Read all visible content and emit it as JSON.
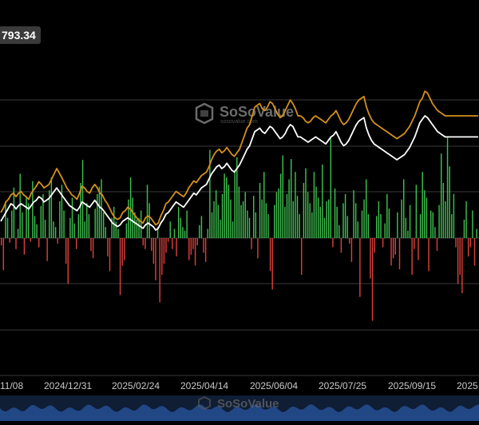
{
  "header": {
    "value_label": "793.34"
  },
  "watermark": {
    "brand": "SoSoValue",
    "sub": "sosovalue.com"
  },
  "chart_data": {
    "type": "bar",
    "title": "",
    "xlabel": "",
    "ylabel": "",
    "x_tick_labels": [
      "11/08",
      "2024/12/31",
      "2025/02/24",
      "2025/04/14",
      "2025/06/04",
      "2025/07/25",
      "2025/09/15",
      "2025"
    ],
    "flow_bar_values": [
      -8,
      -35,
      40,
      22,
      -5,
      30,
      55,
      -12,
      10,
      70,
      28,
      -18,
      45,
      38,
      -4,
      62,
      24,
      15,
      -10,
      35,
      48,
      20,
      -25,
      52,
      66,
      18,
      12,
      -6,
      40,
      58,
      30,
      -28,
      -50,
      22,
      44,
      16,
      -12,
      26,
      60,
      85,
      18,
      38,
      26,
      -14,
      -22,
      32,
      48,
      56,
      64,
      28,
      12,
      -20,
      -36,
      22,
      34,
      18,
      10,
      -62,
      -30,
      -24,
      16,
      42,
      66,
      44,
      28,
      20,
      22,
      30,
      -8,
      -12,
      58,
      38,
      -14,
      -28,
      -46,
      12,
      -70,
      -40,
      -28,
      -16,
      -4,
      18,
      -12,
      10,
      -20,
      34,
      22,
      12,
      8,
      30,
      -24,
      -18,
      -12,
      -30,
      -8,
      14,
      24,
      -16,
      -26,
      10,
      96,
      28,
      40,
      52,
      36,
      20,
      48,
      70,
      66,
      58,
      42,
      18,
      74,
      88,
      56,
      36,
      40,
      50,
      30,
      22,
      -12,
      46,
      28,
      -22,
      60,
      42,
      72,
      38,
      26,
      -36,
      -56,
      36,
      50,
      54,
      70,
      90,
      34,
      48,
      64,
      86,
      40,
      72,
      46,
      26,
      -40,
      60,
      76,
      50,
      38,
      28,
      72,
      56,
      44,
      34,
      80,
      22,
      40,
      42,
      110,
      -10,
      54,
      34,
      14,
      -16,
      38,
      48,
      24,
      -6,
      -26,
      52,
      38,
      18,
      -64,
      30,
      42,
      64,
      26,
      -44,
      -90,
      -16,
      24,
      40,
      26,
      -10,
      16,
      48,
      32,
      -30,
      -22,
      -18,
      28,
      -34,
      42,
      64,
      22,
      8,
      36,
      -40,
      -12,
      58,
      -24,
      26,
      72,
      52,
      44,
      -36,
      30,
      28,
      12,
      -14,
      36,
      92,
      60,
      40,
      110,
      78,
      26,
      48,
      -10,
      -50,
      -40,
      -60,
      20,
      40,
      -20,
      -10,
      30,
      -30,
      10
    ],
    "series": [
      {
        "name": "",
        "color": "#d4901c",
        "values": [
          40,
          45,
          52,
          55,
          60,
          62,
          58,
          62,
          64,
          60,
          58,
          55,
          62,
          66,
          70,
          75,
          72,
          68,
          70,
          72,
          78,
          84,
          90,
          85,
          80,
          74,
          68,
          64,
          60,
          58,
          55,
          62,
          70,
          68,
          64,
          62,
          68,
          72,
          68,
          62,
          60,
          54,
          50,
          44,
          38,
          34,
          32,
          34,
          40,
          42,
          46,
          44,
          40,
          36,
          32,
          30,
          28,
          34,
          36,
          34,
          30,
          26,
          28,
          36,
          42,
          50,
          52,
          56,
          60,
          64,
          62,
          60,
          58,
          62,
          68,
          72,
          76,
          74,
          78,
          82,
          84,
          86,
          92,
          100,
          106,
          110,
          112,
          108,
          110,
          114,
          110,
          106,
          104,
          108,
          112,
          120,
          128,
          136,
          140,
          150,
          160,
          162,
          164,
          158,
          156,
          160,
          166,
          164,
          158,
          152,
          148,
          150,
          156,
          162,
          168,
          164,
          158,
          150,
          150,
          148,
          144,
          142,
          144,
          148,
          150,
          148,
          146,
          144,
          142,
          146,
          150,
          152,
          156,
          150,
          144,
          140,
          142,
          146,
          152,
          158,
          164,
          168,
          170,
          172,
          160,
          152,
          146,
          142,
          140,
          138,
          136,
          134,
          132,
          130,
          128,
          126,
          124,
          126,
          128,
          130,
          134,
          138,
          144,
          150,
          158,
          166,
          170,
          178,
          176,
          170,
          164,
          160,
          156,
          154,
          152,
          150,
          150,
          150,
          150,
          150,
          150,
          150,
          150,
          150,
          150,
          150,
          150,
          150,
          150
        ]
      },
      {
        "name": "",
        "color": "#ffffff",
        "values": [
          30,
          35,
          40,
          45,
          50,
          48,
          44,
          48,
          50,
          48,
          46,
          44,
          48,
          52,
          54,
          58,
          56,
          52,
          54,
          56,
          60,
          64,
          68,
          64,
          60,
          56,
          52,
          48,
          46,
          44,
          42,
          46,
          52,
          50,
          48,
          46,
          50,
          54,
          50,
          46,
          44,
          40,
          36,
          32,
          28,
          26,
          24,
          26,
          30,
          32,
          34,
          32,
          30,
          28,
          26,
          24,
          22,
          26,
          28,
          26,
          24,
          20,
          22,
          28,
          32,
          38,
          40,
          44,
          48,
          52,
          50,
          48,
          46,
          50,
          54,
          58,
          62,
          60,
          64,
          68,
          70,
          72,
          78,
          84,
          88,
          92,
          94,
          90,
          92,
          96,
          92,
          88,
          86,
          90,
          94,
          100,
          106,
          112,
          116,
          124,
          132,
          134,
          136,
          132,
          130,
          134,
          138,
          136,
          132,
          128,
          124,
          126,
          130,
          136,
          140,
          138,
          132,
          126,
          126,
          124,
          122,
          120,
          122,
          124,
          126,
          124,
          122,
          120,
          118,
          122,
          126,
          128,
          132,
          126,
          120,
          116,
          118,
          122,
          128,
          134,
          140,
          144,
          146,
          148,
          136,
          128,
          122,
          118,
          116,
          114,
          112,
          110,
          108,
          106,
          104,
          102,
          100,
          102,
          104,
          106,
          110,
          114,
          120,
          126,
          134,
          142,
          146,
          150,
          148,
          144,
          140,
          136,
          132,
          130,
          128,
          126,
          126,
          126,
          126,
          126,
          126,
          126,
          126,
          126,
          126,
          126,
          126,
          126,
          126
        ]
      }
    ],
    "colors": {
      "inflow": "#3fbf4f",
      "outflow": "#d8403a",
      "grid": "#3a3a3a",
      "navigator": "#1a3a6a"
    },
    "grid": true
  }
}
